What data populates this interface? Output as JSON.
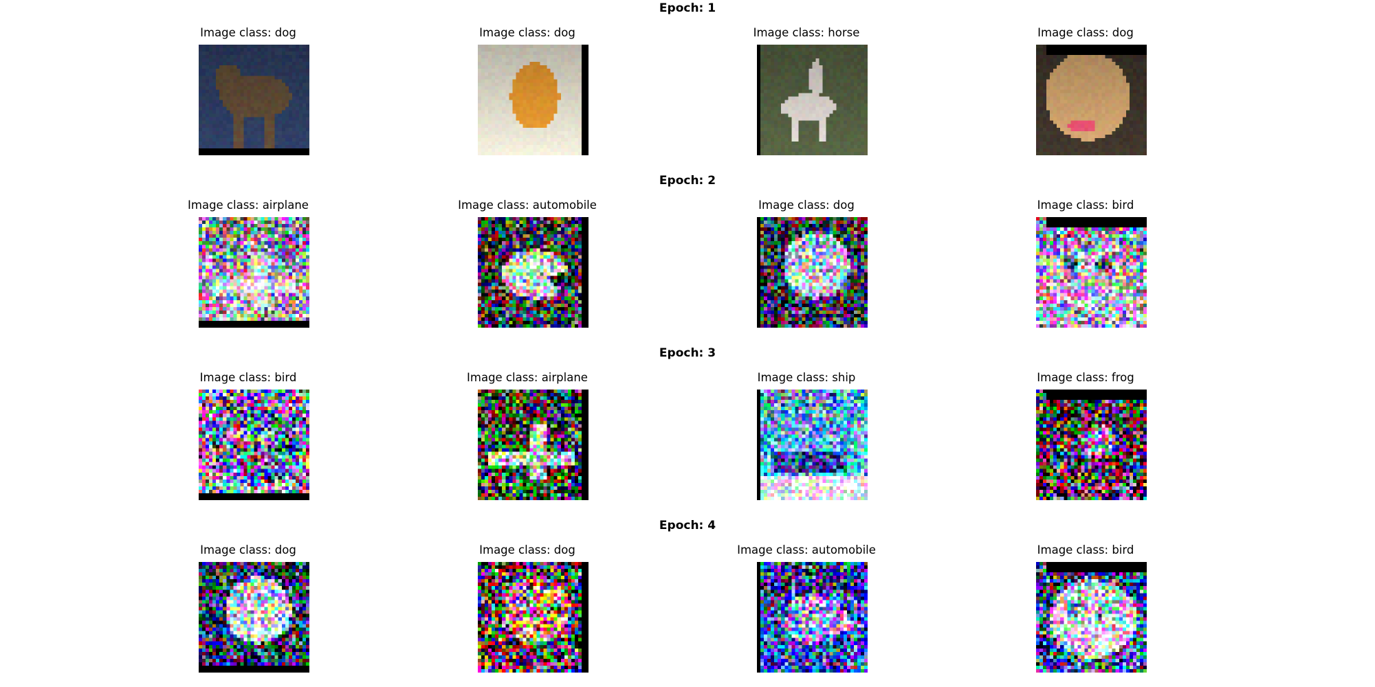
{
  "figure": {
    "epochs": [
      {
        "title": "Epoch: 1",
        "images": [
          {
            "caption": "Image class: dog",
            "noise": 0.03,
            "scene": "dog-standing",
            "palette": [
              "#2b3a5c",
              "#5a4632",
              "#c9b8b0"
            ]
          },
          {
            "caption": "Image class: dog",
            "noise": 0.03,
            "scene": "dog-front",
            "palette": [
              "#d8d4c4",
              "#d9902e",
              "#4d6b4d"
            ]
          },
          {
            "caption": "Image class: horse",
            "noise": 0.03,
            "scene": "horse-rider",
            "palette": [
              "#4f5a3e",
              "#d0c9c4",
              "#7a6b55"
            ]
          },
          {
            "caption": "Image class: dog",
            "noise": 0.03,
            "scene": "dog-closeup",
            "palette": [
              "#3a3128",
              "#c49a68",
              "#d94b6a"
            ]
          }
        ]
      },
      {
        "title": "Epoch: 2",
        "images": [
          {
            "caption": "Image class: airplane",
            "noise": 0.55,
            "scene": "airplane",
            "palette": [
              "#9a9aa8",
              "#e8e8f0",
              "#202030"
            ]
          },
          {
            "caption": "Image class: automobile",
            "noise": 0.65,
            "scene": "car",
            "palette": [
              "#302a30",
              "#e0d6e0",
              "#101010"
            ]
          },
          {
            "caption": "Image class: dog",
            "noise": 0.6,
            "scene": "dog-blob",
            "palette": [
              "#2a2a4a",
              "#c8d8f0",
              "#7080c0"
            ]
          },
          {
            "caption": "Image class: bird",
            "noise": 0.6,
            "scene": "bird",
            "palette": [
              "#a0a0b8",
              "#c0b8c8",
              "#404060"
            ]
          }
        ]
      },
      {
        "title": "Epoch: 3",
        "images": [
          {
            "caption": "Image class: bird",
            "noise": 0.7,
            "scene": "bird",
            "palette": [
              "#9a90b8",
              "#5070a0",
              "#c8c0d0"
            ]
          },
          {
            "caption": "Image class: airplane",
            "noise": 0.75,
            "scene": "airplane",
            "palette": [
              "#2a3a20",
              "#e0d8d0",
              "#604030"
            ]
          },
          {
            "caption": "Image class: ship",
            "noise": 0.55,
            "scene": "ship",
            "palette": [
              "#60b0f0",
              "#e8f4ff",
              "#1040a0"
            ]
          },
          {
            "caption": "Image class: frog",
            "noise": 0.8,
            "scene": "frog",
            "palette": [
              "#402040",
              "#c0a0d0",
              "#208040"
            ]
          }
        ]
      },
      {
        "title": "Epoch: 4",
        "images": [
          {
            "caption": "Image class: dog",
            "noise": 0.7,
            "scene": "dog-blob",
            "palette": [
              "#102060",
              "#e0f0ff",
              "#40a0c0"
            ]
          },
          {
            "caption": "Image class: dog",
            "noise": 0.85,
            "scene": "dog-blob",
            "palette": [
              "#4a2a3a",
              "#e0a080",
              "#203020"
            ]
          },
          {
            "caption": "Image class: automobile",
            "noise": 0.75,
            "scene": "car",
            "palette": [
              "#2030c0",
              "#a0a0ff",
              "#e0e0ff"
            ]
          },
          {
            "caption": "Image class: bird",
            "noise": 0.75,
            "scene": "bird",
            "palette": [
              "#304080",
              "#f0f0ff",
              "#60c0e0"
            ]
          }
        ]
      }
    ]
  }
}
